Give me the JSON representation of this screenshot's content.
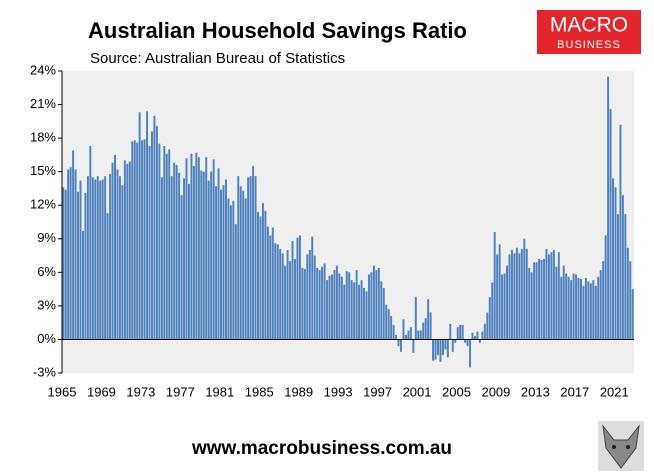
{
  "chart_data": {
    "type": "bar",
    "title": "Australian Household Savings Ratio",
    "subtitle": "Source: Australian Bureau of Statistics",
    "color": "#4f81bd",
    "categories": [
      "1965",
      null,
      null,
      null,
      null,
      null,
      null,
      null,
      null,
      null,
      null,
      null,
      null,
      null,
      null,
      null,
      "1969",
      null,
      null,
      null,
      null,
      null,
      null,
      null,
      null,
      null,
      null,
      null,
      null,
      null,
      null,
      null,
      "1973",
      null,
      null,
      null,
      null,
      null,
      null,
      null,
      null,
      null,
      null,
      null,
      null,
      null,
      null,
      null,
      "1977",
      null,
      null,
      null,
      null,
      null,
      null,
      null,
      null,
      null,
      null,
      null,
      null,
      null,
      null,
      null,
      "1981",
      null,
      null,
      null,
      null,
      null,
      null,
      null,
      null,
      null,
      null,
      null,
      null,
      null,
      null,
      null,
      "1985",
      null,
      null,
      null,
      null,
      null,
      null,
      null,
      null,
      null,
      null,
      null,
      null,
      null,
      null,
      null,
      "1989",
      null,
      null,
      null,
      null,
      null,
      null,
      null,
      null,
      null,
      null,
      null,
      null,
      null,
      null,
      null,
      "1993",
      null,
      null,
      null,
      null,
      null,
      null,
      null,
      null,
      null,
      null,
      null,
      null,
      null,
      null,
      null,
      "1997",
      null,
      null,
      null,
      null,
      null,
      null,
      null,
      null,
      null,
      null,
      null,
      null,
      null,
      null,
      null,
      "2001",
      null,
      null,
      null,
      null,
      null,
      null,
      null,
      null,
      null,
      null,
      null,
      null,
      null,
      null,
      null,
      "2005",
      null,
      null,
      null,
      null,
      null,
      null,
      null,
      null,
      null,
      null,
      null,
      null,
      null,
      null,
      null,
      "2009",
      null,
      null,
      null,
      null,
      null,
      null,
      null,
      null,
      null,
      null,
      null,
      null,
      null,
      null,
      null,
      "2013",
      null,
      null,
      null,
      null,
      null,
      null,
      null,
      null,
      null,
      null,
      null,
      null,
      null,
      null,
      null,
      "2017",
      null,
      null,
      null,
      null,
      null,
      null,
      null,
      null,
      null,
      null,
      null,
      null,
      null,
      null,
      null,
      "2021",
      null,
      null,
      null,
      null,
      null,
      null,
      null
    ],
    "values": [
      13.6,
      13.4,
      15.2,
      15.4,
      16.9,
      15.2,
      13.2,
      14.2,
      9.7,
      13.1,
      14.6,
      17.3,
      14.5,
      14.3,
      14.6,
      14.2,
      14.3,
      14.6,
      11.3,
      14.8,
      15.8,
      16.5,
      15.2,
      14.6,
      13.8,
      16.0,
      15.7,
      15.9,
      17.7,
      17.8,
      17.6,
      20.3,
      17.8,
      17.9,
      20.4,
      17.3,
      18.6,
      20.0,
      19.1,
      17.5,
      14.5,
      17.3,
      16.6,
      17.0,
      14.6,
      15.8,
      15.6,
      14.9,
      12.9,
      14.4,
      16.2,
      13.9,
      16.6,
      15.5,
      16.7,
      16.3,
      15.1,
      15.0,
      16.3,
      14.2,
      15.0,
      16.1,
      13.7,
      15.3,
      13.4,
      13.8,
      14.3,
      12.6,
      12.0,
      12.4,
      10.3,
      14.6,
      13.7,
      13.3,
      12.6,
      14.5,
      14.6,
      15.5,
      14.6,
      11.4,
      11.0,
      12.2,
      11.5,
      10.1,
      9.3,
      10.0,
      8.6,
      8.5,
      8.1,
      7.7,
      6.6,
      8.0,
      7.0,
      8.8,
      7.2,
      9.1,
      9.3,
      6.4,
      6.3,
      7.6,
      8.0,
      9.2,
      7.5,
      6.4,
      6.2,
      6.5,
      6.8,
      5.3,
      5.7,
      5.8,
      6.2,
      6.6,
      5.9,
      5.6,
      4.9,
      6.1,
      6.0,
      5.3,
      5.1,
      6.2,
      4.9,
      5.3,
      4.6,
      4.3,
      5.8,
      6.0,
      6.6,
      6.2,
      6.4,
      5.2,
      4.6,
      3.1,
      2.7,
      2.1,
      1.3,
      0.4,
      -0.6,
      -1.1,
      1.8,
      0.4,
      0.8,
      1.1,
      -1.2,
      3.8,
      0.8,
      0.8,
      1.5,
      1.9,
      3.6,
      2.4,
      -1.9,
      -1.8,
      -1.4,
      -2.0,
      -1.4,
      -0.9,
      -1.6,
      1.4,
      -1.1,
      -0.3,
      1.1,
      1.3,
      1.3,
      -0.3,
      -0.6,
      -2.5,
      0.6,
      0.3,
      0.7,
      -0.3,
      0.7,
      1.4,
      2.4,
      3.8,
      5.1,
      9.6,
      7.6,
      8.5,
      5.8,
      5.9,
      6.6,
      7.6,
      8.0,
      7.7,
      8.2,
      7.7,
      8.1,
      9.0,
      8.1,
      6.4,
      6.0,
      6.9,
      6.9,
      7.2,
      7.1,
      7.2,
      8.1,
      7.6,
      7.8,
      8.0,
      6.5,
      7.8,
      5.6,
      6.6,
      5.9,
      5.6,
      5.3,
      5.9,
      5.8,
      5.5,
      5.4,
      4.8,
      5.5,
      5.2,
      5.0,
      5.3,
      4.8,
      5.6,
      6.2,
      7.0,
      9.3,
      23.5,
      20.6,
      14.4,
      13.6,
      11.2,
      19.2,
      12.9,
      11.2,
      8.2,
      7.0,
      4.5
    ],
    "ylim": [
      -3,
      24
    ],
    "yticks": [
      {
        "value": -3,
        "label": "-3%"
      },
      {
        "value": 0,
        "label": "0%"
      },
      {
        "value": 3,
        "label": "3%"
      },
      {
        "value": 6,
        "label": "6%"
      },
      {
        "value": 9,
        "label": "9%"
      },
      {
        "value": 12,
        "label": "12%"
      },
      {
        "value": 15,
        "label": "15%"
      },
      {
        "value": 18,
        "label": "18%"
      },
      {
        "value": 21,
        "label": "21%"
      },
      {
        "value": 24,
        "label": "24%"
      }
    ],
    "grid": false
  },
  "logo": {
    "line1": "MACRO",
    "line2": "BUSINESS"
  },
  "footer": "www.macrobusiness.com.au"
}
